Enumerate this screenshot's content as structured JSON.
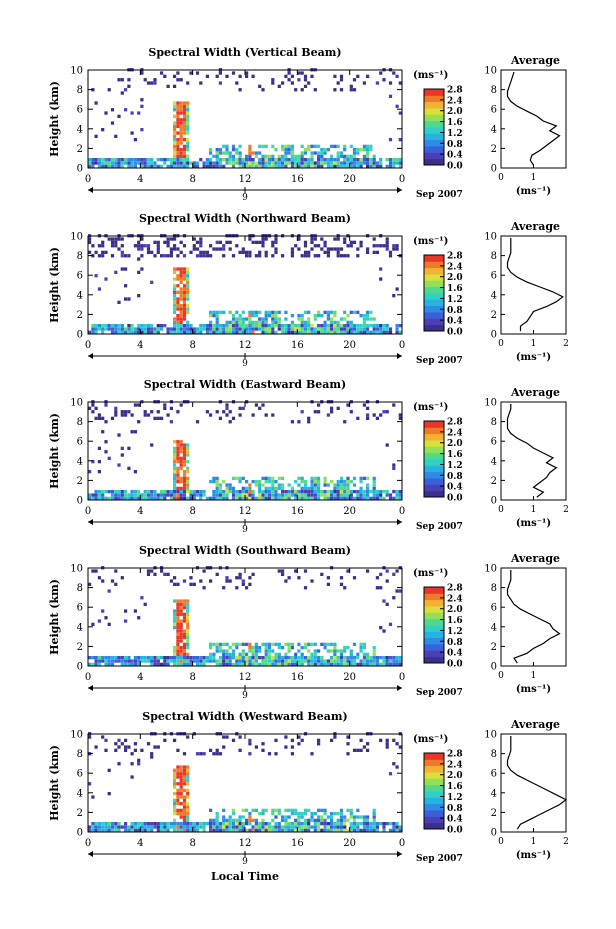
{
  "figure": {
    "units_label": "(ms⁻¹)",
    "date_label": "Sep 2007",
    "day_label": "9",
    "x_axis_title": "Local Time",
    "y_axis_title": "Height (km)",
    "avg_title": "Average",
    "avg_xlabel": "(ms⁻¹)"
  },
  "chart_data": [
    {
      "type": "heatmap",
      "title": "Spectral Width (Vertical Beam)",
      "x_ticks": [
        "0",
        "4",
        "8",
        "12",
        "16",
        "20",
        "0"
      ],
      "y_ticks": [
        "0",
        "2",
        "4",
        "6",
        "8",
        "10"
      ],
      "colorbar_ticks": [
        "0.0",
        "0.4",
        "0.8",
        "1.2",
        "1.6",
        "2.0",
        "2.4",
        "2.8"
      ],
      "xlim_hours": [
        0,
        24
      ],
      "ylim_km": [
        0,
        10
      ],
      "avg_x_ticks": [
        "0",
        "1"
      ],
      "avg_xlim": [
        0,
        2
      ],
      "avg_profile": {
        "h": [
          0.3,
          0.8,
          1.3,
          1.8,
          2.3,
          2.8,
          3.3,
          3.8,
          4.3,
          4.8,
          5.3,
          5.8,
          6.3,
          6.8,
          7.3,
          7.8,
          8.3,
          8.8,
          9.3,
          9.8
        ],
        "v": [
          1.0,
          0.9,
          0.95,
          1.2,
          1.4,
          1.6,
          1.8,
          1.5,
          1.7,
          1.3,
          1.1,
          0.8,
          0.5,
          0.3,
          0.2,
          0.2,
          0.25,
          0.3,
          0.35,
          0.4
        ]
      }
    },
    {
      "type": "heatmap",
      "title": "Spectral Width (Northward Beam)",
      "x_ticks": [
        "0",
        "4",
        "8",
        "12",
        "16",
        "20",
        "0"
      ],
      "y_ticks": [
        "0",
        "2",
        "4",
        "6",
        "8",
        "10"
      ],
      "colorbar_ticks": [
        "0.0",
        "0.4",
        "0.8",
        "1.2",
        "1.6",
        "2.0",
        "2.4",
        "2.8"
      ],
      "xlim_hours": [
        0,
        24
      ],
      "ylim_km": [
        0,
        10
      ],
      "avg_x_ticks": [
        "0",
        "1",
        "2"
      ],
      "avg_xlim": [
        0,
        2
      ],
      "avg_profile": {
        "h": [
          0.3,
          0.8,
          1.3,
          1.8,
          2.3,
          2.8,
          3.3,
          3.8,
          4.3,
          4.8,
          5.3,
          5.8,
          6.3,
          6.8,
          7.3,
          7.8,
          8.3,
          8.8,
          9.3,
          9.8
        ],
        "v": [
          0.6,
          0.6,
          0.8,
          0.9,
          1.0,
          1.4,
          1.7,
          1.9,
          1.6,
          1.2,
          0.8,
          0.5,
          0.3,
          0.2,
          0.2,
          0.25,
          0.3,
          0.3,
          0.3,
          0.3
        ]
      }
    },
    {
      "type": "heatmap",
      "title": "Spectral Width (Eastward Beam)",
      "x_ticks": [
        "0",
        "4",
        "8",
        "12",
        "16",
        "20",
        "0"
      ],
      "y_ticks": [
        "0",
        "2",
        "4",
        "6",
        "8",
        "10"
      ],
      "colorbar_ticks": [
        "0.0",
        "0.4",
        "0.8",
        "1.2",
        "1.6",
        "2.0",
        "2.4",
        "2.8"
      ],
      "xlim_hours": [
        0,
        24
      ],
      "ylim_km": [
        0,
        10
      ],
      "avg_x_ticks": [
        "0",
        "1",
        "2"
      ],
      "avg_xlim": [
        0,
        2
      ],
      "avg_profile": {
        "h": [
          0.3,
          0.8,
          1.3,
          1.8,
          2.3,
          2.8,
          3.3,
          3.8,
          4.3,
          4.8,
          5.3,
          5.8,
          6.3,
          6.8,
          7.3,
          7.8,
          8.3,
          8.8,
          9.3,
          9.8
        ],
        "v": [
          1.1,
          1.3,
          1.0,
          1.2,
          1.4,
          1.5,
          1.7,
          1.4,
          1.6,
          1.3,
          1.0,
          0.8,
          0.5,
          0.3,
          0.2,
          0.2,
          0.2,
          0.25,
          0.3,
          0.3
        ]
      }
    },
    {
      "type": "heatmap",
      "title": "Spectral Width (Southward Beam)",
      "x_ticks": [
        "0",
        "4",
        "8",
        "12",
        "16",
        "20",
        "0"
      ],
      "y_ticks": [
        "0",
        "2",
        "4",
        "6",
        "8",
        "10"
      ],
      "colorbar_ticks": [
        "0.0",
        "0.4",
        "0.8",
        "1.2",
        "1.6",
        "2.0",
        "2.4",
        "2.8"
      ],
      "xlim_hours": [
        0,
        24
      ],
      "ylim_km": [
        0,
        10
      ],
      "avg_x_ticks": [
        "0",
        "1"
      ],
      "avg_xlim": [
        0,
        2
      ],
      "avg_profile": {
        "h": [
          0.3,
          0.8,
          1.3,
          1.8,
          2.3,
          2.8,
          3.3,
          3.8,
          4.3,
          4.8,
          5.3,
          5.8,
          6.3,
          6.8,
          7.3,
          7.8,
          8.3,
          8.8,
          9.3,
          9.8
        ],
        "v": [
          0.5,
          0.4,
          0.8,
          1.0,
          1.3,
          1.5,
          1.8,
          1.6,
          1.5,
          1.2,
          0.9,
          0.6,
          0.4,
          0.3,
          0.2,
          0.2,
          0.25,
          0.3,
          0.3,
          0.3
        ]
      }
    },
    {
      "type": "heatmap",
      "title": "Spectral Width (Westward Beam)",
      "x_ticks": [
        "0",
        "4",
        "8",
        "12",
        "16",
        "20",
        "0"
      ],
      "y_ticks": [
        "0",
        "2",
        "4",
        "6",
        "8",
        "10"
      ],
      "colorbar_ticks": [
        "0.0",
        "0.4",
        "0.8",
        "1.2",
        "1.6",
        "2.0",
        "2.4",
        "2.8"
      ],
      "xlim_hours": [
        0,
        24
      ],
      "ylim_km": [
        0,
        10
      ],
      "avg_x_ticks": [
        "0",
        "1",
        "2"
      ],
      "avg_xlim": [
        0,
        2
      ],
      "avg_profile": {
        "h": [
          0.3,
          0.8,
          1.3,
          1.8,
          2.3,
          2.8,
          3.3,
          3.8,
          4.3,
          4.8,
          5.3,
          5.8,
          6.3,
          6.8,
          7.3,
          7.8,
          8.3,
          8.8,
          9.3,
          9.8
        ],
        "v": [
          0.5,
          0.6,
          0.9,
          1.2,
          1.5,
          1.8,
          2.0,
          1.7,
          1.4,
          1.1,
          0.8,
          0.5,
          0.3,
          0.2,
          0.2,
          0.25,
          0.3,
          0.3,
          0.3,
          0.3
        ]
      }
    }
  ]
}
